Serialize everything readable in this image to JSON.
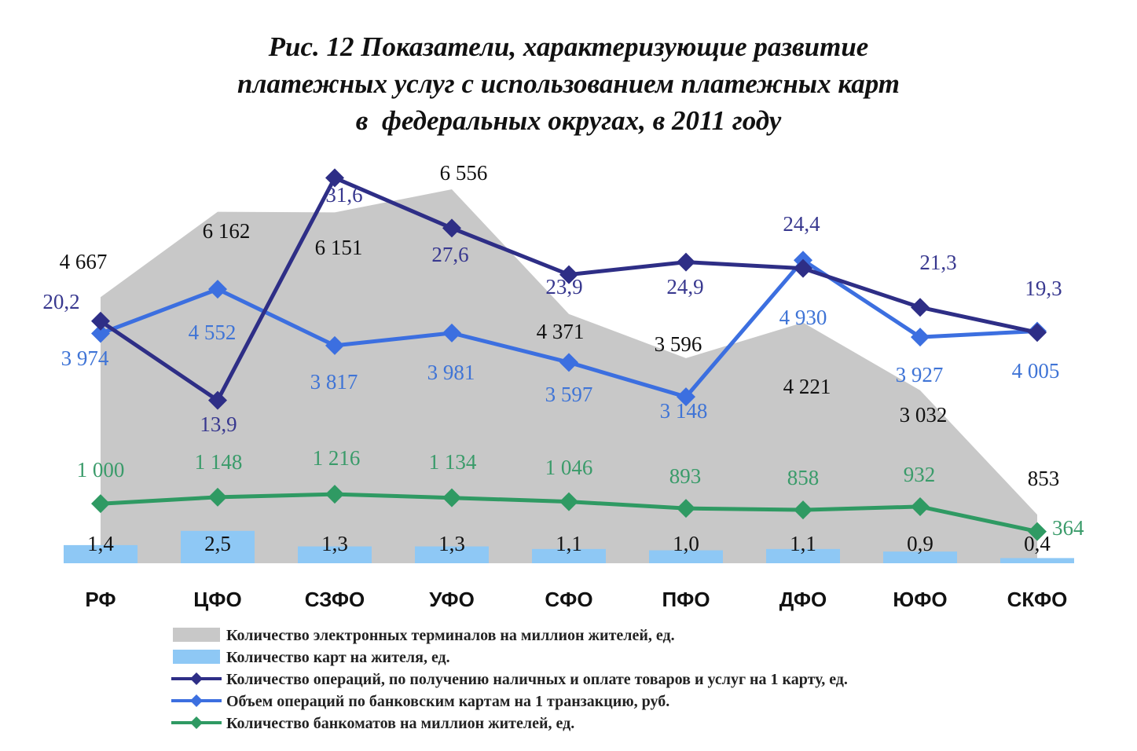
{
  "chart_data": {
    "type": "line",
    "title_lines": [
      "Рис. 12 Показатели, характеризующие развитие",
      "платежных услуг с использованием платежных карт",
      "в  федеральных округах, в 2011 году"
    ],
    "categories": [
      "РФ",
      "ЦФО",
      "СЗФО",
      "УФО",
      "СФО",
      "ПФО",
      "ДФО",
      "ЮФО",
      "СКФО"
    ],
    "series": [
      {
        "key": "terminals",
        "chart_type": "area",
        "name": "Количество электронных терминалов на миллион жителей, ед.",
        "values": [
          4667,
          6162,
          6151,
          6556,
          4371,
          3596,
          4221,
          3032,
          853
        ],
        "labels": [
          "4 667",
          "6 162",
          "6 151",
          "6 556",
          "4 371",
          "3 596",
          "4 221",
          "3 032",
          "853"
        ],
        "color": "#c8c8c8",
        "label_color": "#111111"
      },
      {
        "key": "cards",
        "chart_type": "bar",
        "name": "Количество карт на жителя, ед.",
        "values": [
          1.4,
          2.5,
          1.3,
          1.3,
          1.1,
          1.0,
          1.1,
          0.9,
          0.4
        ],
        "labels": [
          "1,4",
          "2,5",
          "1,3",
          "1,3",
          "1,1",
          "1,0",
          "1,1",
          "0,9",
          "0,4"
        ],
        "color": "#8ec8f5",
        "label_color": "#111111"
      },
      {
        "key": "operations",
        "chart_type": "line",
        "name": "Количество операций, по получению наличных и оплате товаров и услуг на 1 карту, ед.",
        "values": [
          20.2,
          13.9,
          31.6,
          27.6,
          23.9,
          24.9,
          24.4,
          21.3,
          19.3
        ],
        "labels": [
          "20,2",
          "13,9",
          "31,6",
          "27,6",
          "23,9",
          "24,9",
          "24,4",
          "21,3",
          "19,3"
        ],
        "color": "#2e2e86",
        "label_color": "#38388f"
      },
      {
        "key": "volume",
        "chart_type": "line",
        "name": "Объем операций по банковским картам на 1 транзакцию, руб.",
        "values": [
          3974,
          4552,
          3817,
          3981,
          3597,
          3148,
          4930,
          3927,
          4005
        ],
        "labels": [
          "3 974",
          "4 552",
          "3 817",
          "3 981",
          "3 597",
          "3 148",
          "4 930",
          "3 927",
          "4 005"
        ],
        "color": "#3c6fe0",
        "label_color": "#3f74d6"
      },
      {
        "key": "atms",
        "chart_type": "line",
        "name": "Количество банкоматов на миллион жителей, ед.",
        "values": [
          1000,
          1148,
          1216,
          1134,
          1046,
          893,
          858,
          932,
          364
        ],
        "labels": [
          "1 000",
          "1 148",
          "1 216",
          "1 134",
          "1 046",
          "893",
          "858",
          "932",
          "364"
        ],
        "color": "#2f9a63",
        "label_color": "#3a9b6a"
      }
    ],
    "legend_position": "bottom",
    "grid": false
  }
}
